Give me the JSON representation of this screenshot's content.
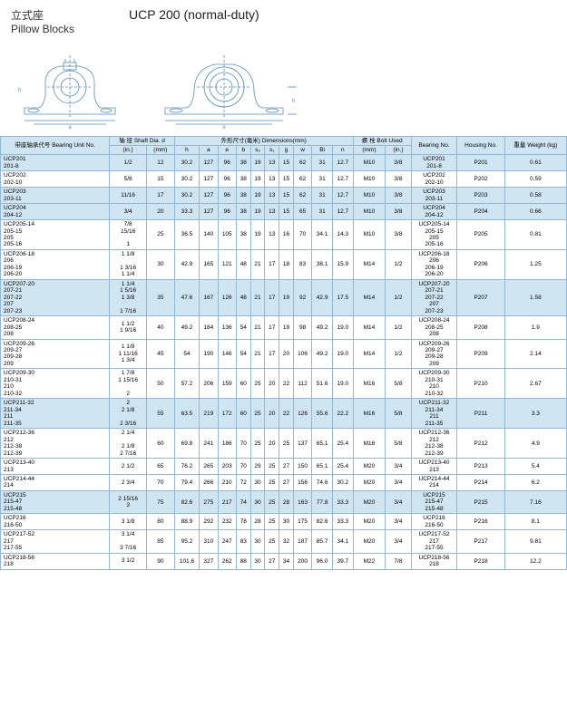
{
  "header": {
    "chinese": "立式座",
    "title": "UCP 200 (normal-duty)",
    "subtitle": "Pillow Blocks"
  },
  "table": {
    "headers": {
      "unit": "带座轴承代号\nBearing Unit\nNo.",
      "shaft": "轴 径\nShaft Dia.\nd",
      "shaft_in": "(in.)",
      "shaft_mm": "(mm)",
      "dims": "外形尺寸(毫米)\nDimensions(mm)",
      "dim_cols": [
        "h",
        "a",
        "e",
        "b",
        "s₂",
        "s₁",
        "g",
        "w",
        "Bi",
        "n"
      ],
      "bolt": "螺 栓\nBolt Used",
      "bolt_mm": "(mm)",
      "bolt_in": "(in.)",
      "bearing": "Bearing\nNo.",
      "housing": "Housing\nNo.",
      "weight": "重量\nWeight\n(kg)"
    },
    "rows": [
      {
        "shade": true,
        "unit": "UCP201\n201-8",
        "in": "1/2",
        "mm": "12",
        "h": "30.2",
        "a": "127",
        "e": "96",
        "b": "38",
        "s2": "19",
        "s1": "13",
        "g": "15",
        "w": "62",
        "bi": "31",
        "n": "12.7",
        "bmm": "M10",
        "bin": "3/8",
        "brg": "UCP201\n201-8",
        "hsg": "P201",
        "wt": "0.61"
      },
      {
        "shade": false,
        "unit": "UCP202\n202-10",
        "in": "5/8",
        "mm": "15",
        "h": "30.2",
        "a": "127",
        "e": "96",
        "b": "38",
        "s2": "19",
        "s1": "13",
        "g": "15",
        "w": "62",
        "bi": "31",
        "n": "12.7",
        "bmm": "M10",
        "bin": "3/8",
        "brg": "UCP202\n202-10",
        "hsg": "P202",
        "wt": "0.59"
      },
      {
        "shade": true,
        "unit": "UCP203\n203-11",
        "in": "11/16",
        "mm": "17",
        "h": "30.2",
        "a": "127",
        "e": "96",
        "b": "38",
        "s2": "19",
        "s1": "13",
        "g": "15",
        "w": "62",
        "bi": "31",
        "n": "12.7",
        "bmm": "M10",
        "bin": "3/8",
        "brg": "UCP203\n203-11",
        "hsg": "P203",
        "wt": "0.58"
      },
      {
        "shade": true,
        "unit": "UCP204\n204-12",
        "in": "3/4",
        "mm": "20",
        "h": "33.3",
        "a": "127",
        "e": "96",
        "b": "38",
        "s2": "19",
        "s1": "13",
        "g": "15",
        "w": "65",
        "bi": "31",
        "n": "12.7",
        "bmm": "M10",
        "bin": "3/8",
        "brg": "UCP204\n204-12",
        "hsg": "P204",
        "wt": "0.66"
      },
      {
        "shade": false,
        "unit": "UCP205-14\n205-15\n205\n205-16",
        "in": "7/8\n15/16\n\n1",
        "mm": "25",
        "h": "36.5",
        "a": "140",
        "e": "105",
        "b": "38",
        "s2": "19",
        "s1": "13",
        "g": "16",
        "w": "70",
        "bi": "34.1",
        "n": "14.3",
        "bmm": "M10",
        "bin": "3/8",
        "brg": "UCP205-14\n205-15\n205\n205-16",
        "hsg": "P205",
        "wt": "0.81"
      },
      {
        "shade": false,
        "unit": "UCP206-18\n206\n206-19\n206-20",
        "in": "1 1/8\n\n1 3/16\n1 1/4",
        "mm": "30",
        "h": "42.9",
        "a": "165",
        "e": "121",
        "b": "48",
        "s2": "21",
        "s1": "17",
        "g": "18",
        "w": "83",
        "bi": "38.1",
        "n": "15.9",
        "bmm": "M14",
        "bin": "1/2",
        "brg": "UCP206-18\n206\n206-19\n206-20",
        "hsg": "P206",
        "wt": "1.25"
      },
      {
        "shade": true,
        "unit": "UCP207-20\n207-21\n207-22\n207\n207-23",
        "in": "1 1/4\n1 5/16\n1 3/8\n\n1 7/16",
        "mm": "35",
        "h": "47.6",
        "a": "167",
        "e": "126",
        "b": "48",
        "s2": "21",
        "s1": "17",
        "g": "19",
        "w": "92",
        "bi": "42.9",
        "n": "17.5",
        "bmm": "M14",
        "bin": "1/2",
        "brg": "UCP207-20\n207-21\n207-22\n207\n207-23",
        "hsg": "P207",
        "wt": "1.58"
      },
      {
        "shade": false,
        "unit": "UCP208-24\n208-25\n208",
        "in": "1 1/2\n1 9/16",
        "mm": "40",
        "h": "49.2",
        "a": "184",
        "e": "136",
        "b": "54",
        "s2": "21",
        "s1": "17",
        "g": "19",
        "w": "98",
        "bi": "49.2",
        "n": "19.0",
        "bmm": "M14",
        "bin": "1/2",
        "brg": "UCP208-24\n208-25\n208",
        "hsg": "P208",
        "wt": "1.9"
      },
      {
        "shade": false,
        "unit": "UCP209-26\n209-27\n209-28\n209",
        "in": "1 1/8\n1 11/16\n1 3/4",
        "mm": "45",
        "h": "54",
        "a": "190",
        "e": "146",
        "b": "54",
        "s2": "21",
        "s1": "17",
        "g": "20",
        "w": "106",
        "bi": "49.2",
        "n": "19.0",
        "bmm": "M14",
        "bin": "1/2",
        "brg": "UCP209-26\n209-27\n209-28\n209",
        "hsg": "P209",
        "wt": "2.14"
      },
      {
        "shade": false,
        "unit": "UCP209-30\n210-31\n210\n210-32",
        "in": "1 7/8\n1 15/16\n\n2",
        "mm": "50",
        "h": "57.2",
        "a": "206",
        "e": "159",
        "b": "60",
        "s2": "25",
        "s1": "20",
        "g": "22",
        "w": "112",
        "bi": "51.6",
        "n": "19.0",
        "bmm": "M16",
        "bin": "5/8",
        "brg": "UCP209-30\n210-31\n210\n210-32",
        "hsg": "P210",
        "wt": "2.67"
      },
      {
        "shade": true,
        "unit": "UCP211-32\n211-34\n211\n211-35",
        "in": "2\n2 1/8\n\n2 3/16",
        "mm": "55",
        "h": "63.5",
        "a": "219",
        "e": "172",
        "b": "60",
        "s2": "25",
        "s1": "20",
        "g": "22",
        "w": "126",
        "bi": "55.6",
        "n": "22.2",
        "bmm": "M16",
        "bin": "5/8",
        "brg": "UCP211-32\n211-34\n211\n211-35",
        "hsg": "P211",
        "wt": "3.3"
      },
      {
        "shade": false,
        "unit": "UCP212-36\n212\n212-38\n212-39",
        "in": "2 1/4\n\n2 1/8\n2 7/16",
        "mm": "60",
        "h": "69.8",
        "a": "241",
        "e": "186",
        "b": "70",
        "s2": "25",
        "s1": "20",
        "g": "25",
        "w": "137",
        "bi": "65.1",
        "n": "25.4",
        "bmm": "M16",
        "bin": "5/8",
        "brg": "UCP212-36\n212\n212-38\n212-39",
        "hsg": "P212",
        "wt": "4.9"
      },
      {
        "shade": false,
        "unit": "UCP213-40\n213",
        "in": "2 1/2",
        "mm": "65",
        "h": "76.2",
        "a": "265",
        "e": "203",
        "b": "70",
        "s2": "29",
        "s1": "25",
        "g": "27",
        "w": "150",
        "bi": "65.1",
        "n": "25.4",
        "bmm": "M20",
        "bin": "3/4",
        "brg": "UCP213-40\n213",
        "hsg": "P213",
        "wt": "5.4"
      },
      {
        "shade": false,
        "unit": "UCP214-44\n214",
        "in": "2 3/4",
        "mm": "70",
        "h": "79.4",
        "a": "266",
        "e": "210",
        "b": "72",
        "s2": "30",
        "s1": "25",
        "g": "27",
        "w": "156",
        "bi": "74.6",
        "n": "30.2",
        "bmm": "M20",
        "bin": "3/4",
        "brg": "UCP214-44\n214",
        "hsg": "P214",
        "wt": "6.2"
      },
      {
        "shade": true,
        "unit": "UCP215\n215-47\n215-48",
        "in": "2 15/16\n3",
        "mm": "75",
        "h": "82.6",
        "a": "275",
        "e": "217",
        "b": "74",
        "s2": "30",
        "s1": "25",
        "g": "28",
        "w": "163",
        "bi": "77.8",
        "n": "33.3",
        "bmm": "M20",
        "bin": "3/4",
        "brg": "UCP215\n215-47\n215-48",
        "hsg": "P215",
        "wt": "7.16"
      },
      {
        "shade": false,
        "unit": "UCP216\n216-50",
        "in": "3 1/8",
        "mm": "80",
        "h": "88.9",
        "a": "292",
        "e": "232",
        "b": "78",
        "s2": "28",
        "s1": "25",
        "g": "30",
        "w": "175",
        "bi": "82.6",
        "n": "33.3",
        "bmm": "M20",
        "bin": "3/4",
        "brg": "UCP216\n216-50",
        "hsg": "P216",
        "wt": "8.1"
      },
      {
        "shade": false,
        "unit": "UCP217-52\n217\n217-55",
        "in": "3 1/4\n\n3 7/16",
        "mm": "85",
        "h": "95.2",
        "a": "310",
        "e": "247",
        "b": "83",
        "s2": "30",
        "s1": "25",
        "g": "32",
        "w": "187",
        "bi": "85.7",
        "n": "34.1",
        "bmm": "M20",
        "bin": "3/4",
        "brg": "UCP217-52\n217\n217-55",
        "hsg": "P217",
        "wt": "9.81"
      },
      {
        "shade": false,
        "unit": "UCP218-56\n218",
        "in": "3 1/2",
        "mm": "90",
        "h": "101.6",
        "a": "327",
        "e": "262",
        "b": "88",
        "s2": "30",
        "s1": "27",
        "g": "34",
        "w": "200",
        "bi": "96.0",
        "n": "39.7",
        "bmm": "M22",
        "bin": "7/8",
        "brg": "UCP218-56\n218",
        "hsg": "P218",
        "wt": "12.2"
      }
    ]
  },
  "colors": {
    "border": "#94b8d4",
    "header_bg": "#d0e5f2",
    "shade_bg": "#d0e5f2",
    "diagram_stroke": "#5a8bb8"
  }
}
